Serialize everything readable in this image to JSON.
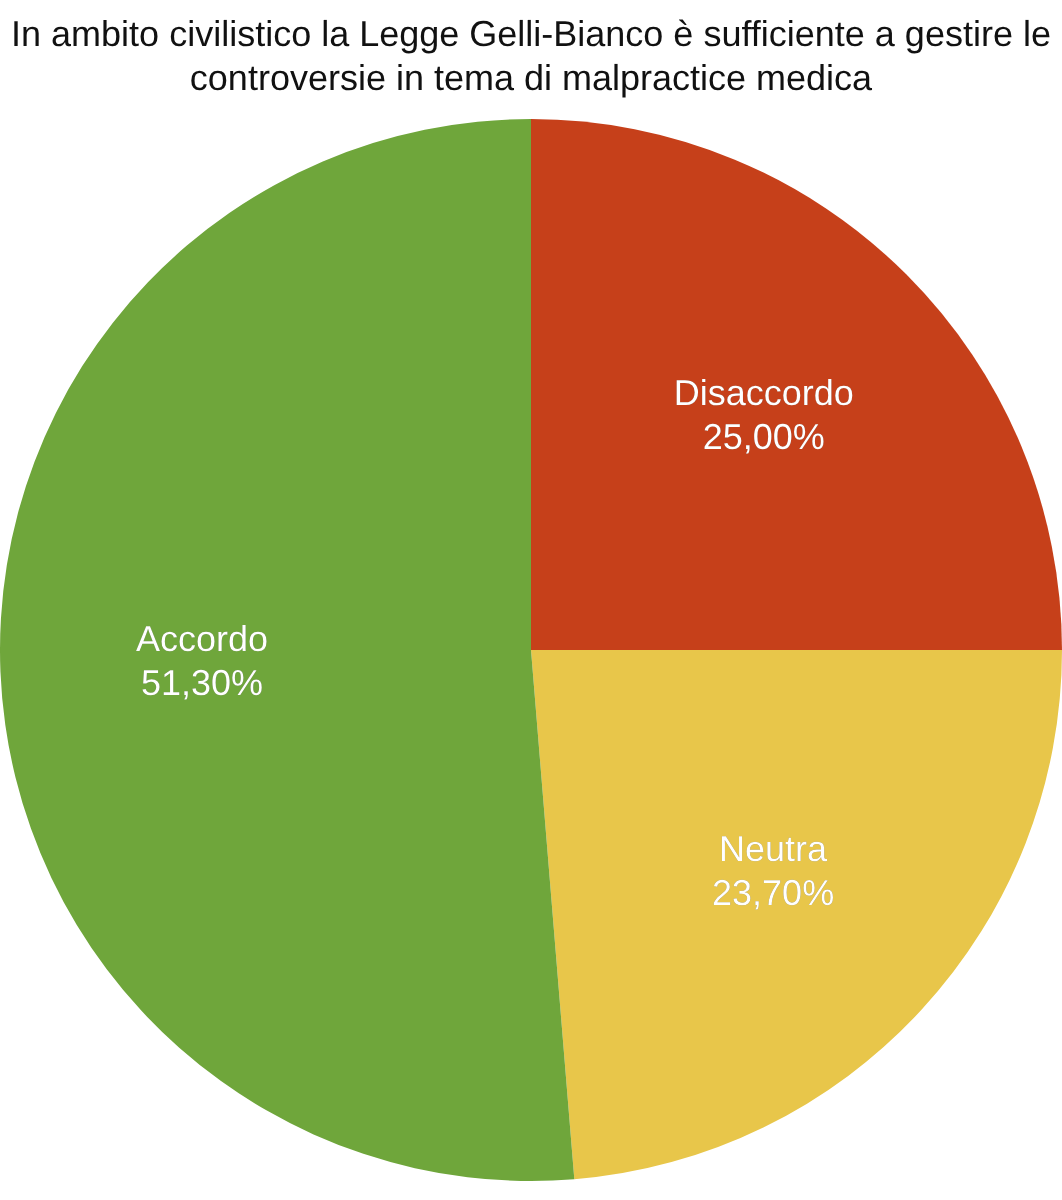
{
  "chart_data": {
    "type": "pie",
    "title": "In ambito civilistico la Legge Gelli-Bianco è sufficiente a gestire le controversie in tema di malpractice medica",
    "categories": [
      "Disaccordo",
      "Neutra",
      "Accordo"
    ],
    "values": [
      25,
      23.7,
      51.3
    ],
    "colors": [
      "#c6401a",
      "#e8c64a",
      "#6fa63b"
    ],
    "value_labels": [
      "25,00%",
      "23,70%",
      "51,30%"
    ],
    "legend": false
  }
}
